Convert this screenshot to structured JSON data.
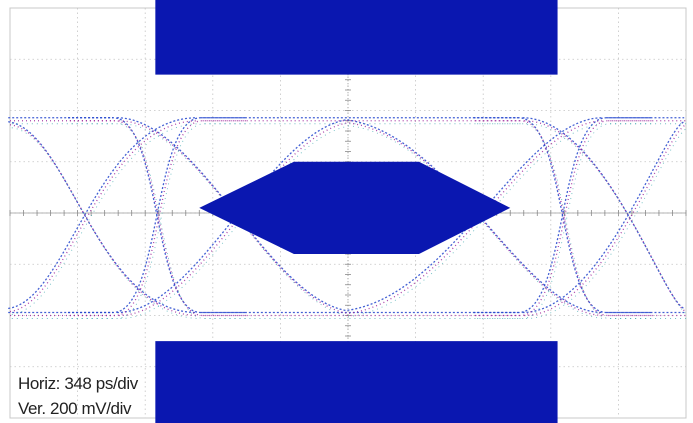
{
  "chart_data": {
    "type": "eye-diagram",
    "title": "",
    "scale": {
      "horizontal": "Horiz: 348 ps/div",
      "vertical": "Ver. 200 mV/div"
    },
    "grid": true,
    "grid_divisions": {
      "x": 10,
      "y": 8
    },
    "x_range_div": [
      0,
      10
    ],
    "y_range_div": [
      0,
      8
    ],
    "trace": {
      "high_level_div": 2.2,
      "low_level_div": 6.0,
      "crossing_level_div": 4.0,
      "crossings_div": [
        2.2,
        8.2
      ],
      "rise_fall_time_div": 1.3,
      "color_primary": "#2244cc",
      "color_secondary": "#9a2299",
      "color_tertiary": "#33a3aa"
    },
    "mask": {
      "color": "#0a17b0",
      "top_region_div": {
        "x": [
          2.15,
          8.1
        ],
        "y": [
          -0.2,
          1.3
        ]
      },
      "bottom_region_div": {
        "x": [
          2.15,
          8.1
        ],
        "y": [
          6.5,
          8.2
        ]
      },
      "center_polygon_div": [
        [
          2.8,
          3.9
        ],
        [
          4.2,
          3.0
        ],
        [
          6.05,
          3.0
        ],
        [
          7.4,
          3.9
        ],
        [
          6.05,
          4.8
        ],
        [
          4.2,
          4.8
        ]
      ]
    }
  }
}
